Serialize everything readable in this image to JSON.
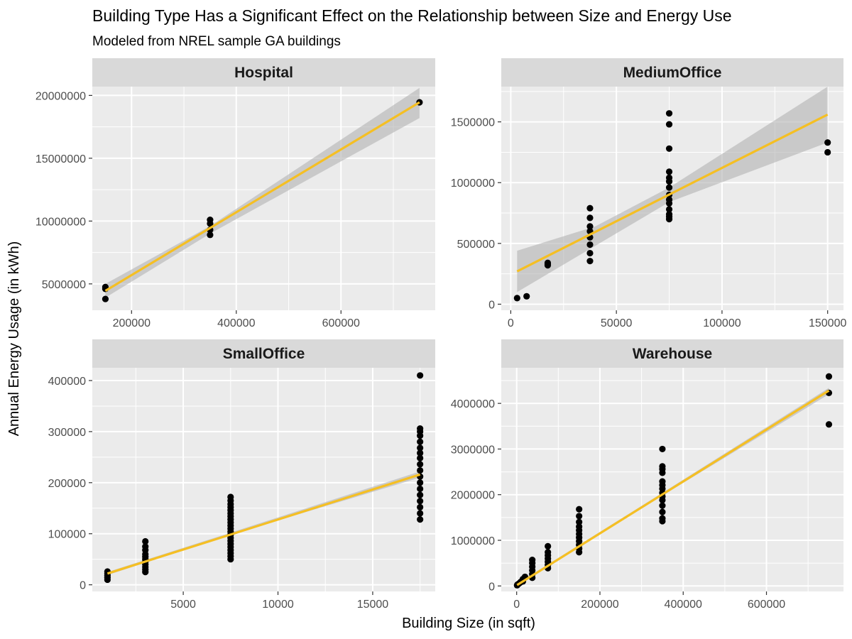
{
  "chart_data": {
    "type": "scatter",
    "title": "Building Type Has a Significant Effect on the Relationship between Size and Energy Use",
    "subtitle": "Modeled from NREL sample GA buildings",
    "xlabel": "Building Size (in sqft)",
    "ylabel": "Annual Energy Usage (in kWh)",
    "colors": {
      "panel_bg": "#ebebeb",
      "strip_bg": "#d9d9d9",
      "grid": "#ffffff",
      "point": "#000000",
      "fit_line": "#f5bf23",
      "ribbon": "#b3b3b3",
      "tick": "#333333"
    },
    "panels": [
      {
        "name": "Hospital",
        "xlim": [
          125000,
          780000
        ],
        "ylim": [
          2900000,
          20700000
        ],
        "x_ticks": [
          200000,
          400000,
          600000
        ],
        "x_tick_labels": [
          "200000",
          "400000",
          "600000"
        ],
        "y_ticks": [
          5000000,
          10000000,
          15000000,
          20000000
        ],
        "y_tick_labels": [
          "5000000",
          "10000000",
          "15000000",
          "20000000"
        ],
        "points": [
          [
            150000,
            4750000
          ],
          [
            150000,
            4600000
          ],
          [
            150000,
            3800000
          ],
          [
            350000,
            10100000
          ],
          [
            350000,
            9800000
          ],
          [
            350000,
            9300000
          ],
          [
            350000,
            8900000
          ],
          [
            750000,
            19450000
          ]
        ],
        "fit": {
          "x": [
            150000,
            750000
          ],
          "y": [
            4450000,
            19450000
          ]
        },
        "ribbon": {
          "x": [
            150000,
            350000,
            750000
          ],
          "upper": [
            5000000,
            9600000,
            20600000
          ],
          "lower": [
            3900000,
            9000000,
            18200000
          ]
        }
      },
      {
        "name": "MediumOffice",
        "xlim": [
          -4500,
          157500
        ],
        "ylim": [
          -50000,
          1790000
        ],
        "x_ticks": [
          0,
          50000,
          100000,
          150000
        ],
        "x_tick_labels": [
          "0",
          "50000",
          "100000",
          "150000"
        ],
        "y_ticks": [
          0,
          500000,
          1000000,
          1500000
        ],
        "y_tick_labels": [
          "0",
          "500000",
          "1000000",
          "1500000"
        ],
        "points": [
          [
            3000,
            50000
          ],
          [
            7500,
            65000
          ],
          [
            17500,
            320000
          ],
          [
            17500,
            330000
          ],
          [
            17500,
            340000
          ],
          [
            37500,
            355000
          ],
          [
            37500,
            420000
          ],
          [
            37500,
            490000
          ],
          [
            37500,
            550000
          ],
          [
            37500,
            600000
          ],
          [
            37500,
            640000
          ],
          [
            37500,
            710000
          ],
          [
            37500,
            790000
          ],
          [
            75000,
            700000
          ],
          [
            75000,
            720000
          ],
          [
            75000,
            740000
          ],
          [
            75000,
            780000
          ],
          [
            75000,
            830000
          ],
          [
            75000,
            860000
          ],
          [
            75000,
            900000
          ],
          [
            75000,
            960000
          ],
          [
            75000,
            1010000
          ],
          [
            75000,
            1040000
          ],
          [
            75000,
            1090000
          ],
          [
            75000,
            1280000
          ],
          [
            75000,
            1480000
          ],
          [
            75000,
            1570000
          ],
          [
            150000,
            1250000
          ],
          [
            150000,
            1330000
          ]
        ],
        "fit": {
          "x": [
            3000,
            150000
          ],
          "y": [
            270000,
            1560000
          ]
        },
        "ribbon": {
          "x": [
            3000,
            40000,
            75000,
            150000
          ],
          "upper": [
            440000,
            640000,
            960000,
            1790000
          ],
          "lower": [
            100000,
            480000,
            840000,
            1330000
          ]
        }
      },
      {
        "name": "SmallOffice",
        "xlim": [
          200,
          18300
        ],
        "ylim": [
          -13000,
          425000
        ],
        "x_ticks": [
          5000,
          10000,
          15000
        ],
        "x_tick_labels": [
          "5000",
          "10000",
          "15000"
        ],
        "y_ticks": [
          0,
          100000,
          200000,
          300000,
          400000
        ],
        "y_tick_labels": [
          "0",
          "100000",
          "200000",
          "300000",
          "400000"
        ],
        "points": [
          [
            1000,
            10000
          ],
          [
            1000,
            14000
          ],
          [
            1000,
            18000
          ],
          [
            1000,
            22000
          ],
          [
            1000,
            26000
          ],
          [
            3000,
            25000
          ],
          [
            3000,
            30000
          ],
          [
            3000,
            35000
          ],
          [
            3000,
            40000
          ],
          [
            3000,
            45000
          ],
          [
            3000,
            50000
          ],
          [
            3000,
            55000
          ],
          [
            3000,
            60000
          ],
          [
            3000,
            68000
          ],
          [
            3000,
            75000
          ],
          [
            3000,
            85000
          ],
          [
            7500,
            50000
          ],
          [
            7500,
            56000
          ],
          [
            7500,
            62000
          ],
          [
            7500,
            68000
          ],
          [
            7500,
            74000
          ],
          [
            7500,
            80000
          ],
          [
            7500,
            86000
          ],
          [
            7500,
            92000
          ],
          [
            7500,
            98000
          ],
          [
            7500,
            104000
          ],
          [
            7500,
            110000
          ],
          [
            7500,
            116000
          ],
          [
            7500,
            122000
          ],
          [
            7500,
            128000
          ],
          [
            7500,
            134000
          ],
          [
            7500,
            140000
          ],
          [
            7500,
            146000
          ],
          [
            7500,
            152000
          ],
          [
            7500,
            158000
          ],
          [
            7500,
            165000
          ],
          [
            7500,
            172000
          ],
          [
            17500,
            128000
          ],
          [
            17500,
            140000
          ],
          [
            17500,
            152000
          ],
          [
            17500,
            164000
          ],
          [
            17500,
            176000
          ],
          [
            17500,
            188000
          ],
          [
            17500,
            200000
          ],
          [
            17500,
            212000
          ],
          [
            17500,
            224000
          ],
          [
            17500,
            236000
          ],
          [
            17500,
            248000
          ],
          [
            17500,
            258000
          ],
          [
            17500,
            268000
          ],
          [
            17500,
            280000
          ],
          [
            17500,
            292000
          ],
          [
            17500,
            300000
          ],
          [
            17500,
            306000
          ],
          [
            17500,
            410000
          ]
        ],
        "fit": {
          "x": [
            1000,
            17500
          ],
          "y": [
            22000,
            216000
          ]
        },
        "ribbon": {
          "x": [
            1000,
            7500,
            17500
          ],
          "upper": [
            25000,
            102000,
            222000
          ],
          "lower": [
            19000,
            98000,
            210000
          ]
        }
      },
      {
        "name": "Warehouse",
        "xlim": [
          -37000,
          785000
        ],
        "ylim": [
          -120000,
          4780000
        ],
        "x_ticks": [
          0,
          200000,
          400000,
          600000
        ],
        "x_tick_labels": [
          "0",
          "200000",
          "400000",
          "600000"
        ],
        "y_ticks": [
          0,
          1000000,
          2000000,
          3000000,
          4000000
        ],
        "y_tick_labels": [
          "0",
          "1000000",
          "2000000",
          "3000000",
          "4000000"
        ],
        "points": [
          [
            1000,
            15000
          ],
          [
            2000,
            30000
          ],
          [
            5000,
            50000
          ],
          [
            8000,
            70000
          ],
          [
            10000,
            90000
          ],
          [
            15000,
            100000
          ],
          [
            15000,
            150000
          ],
          [
            20000,
            200000
          ],
          [
            37500,
            180000
          ],
          [
            37500,
            260000
          ],
          [
            37500,
            340000
          ],
          [
            37500,
            420000
          ],
          [
            37500,
            500000
          ],
          [
            37500,
            570000
          ],
          [
            75000,
            390000
          ],
          [
            75000,
            460000
          ],
          [
            75000,
            530000
          ],
          [
            75000,
            600000
          ],
          [
            75000,
            670000
          ],
          [
            75000,
            740000
          ],
          [
            75000,
            870000
          ],
          [
            150000,
            740000
          ],
          [
            150000,
            820000
          ],
          [
            150000,
            900000
          ],
          [
            150000,
            980000
          ],
          [
            150000,
            1060000
          ],
          [
            150000,
            1140000
          ],
          [
            150000,
            1220000
          ],
          [
            150000,
            1300000
          ],
          [
            150000,
            1400000
          ],
          [
            150000,
            1530000
          ],
          [
            150000,
            1680000
          ],
          [
            350000,
            1420000
          ],
          [
            350000,
            1480000
          ],
          [
            350000,
            1620000
          ],
          [
            350000,
            1760000
          ],
          [
            350000,
            1880000
          ],
          [
            350000,
            1960000
          ],
          [
            350000,
            2040000
          ],
          [
            350000,
            2130000
          ],
          [
            350000,
            2210000
          ],
          [
            350000,
            2290000
          ],
          [
            350000,
            2480000
          ],
          [
            350000,
            2560000
          ],
          [
            350000,
            2620000
          ],
          [
            350000,
            3000000
          ],
          [
            750000,
            3540000
          ],
          [
            750000,
            4230000
          ],
          [
            750000,
            4590000
          ]
        ],
        "fit": {
          "x": [
            1000,
            750000
          ],
          "y": [
            20000,
            4280000
          ]
        },
        "ribbon": {
          "x": [
            1000,
            350000,
            750000
          ],
          "upper": [
            50000,
            2040000,
            4340000
          ],
          "lower": [
            0,
            1980000,
            4200000
          ]
        }
      }
    ]
  }
}
